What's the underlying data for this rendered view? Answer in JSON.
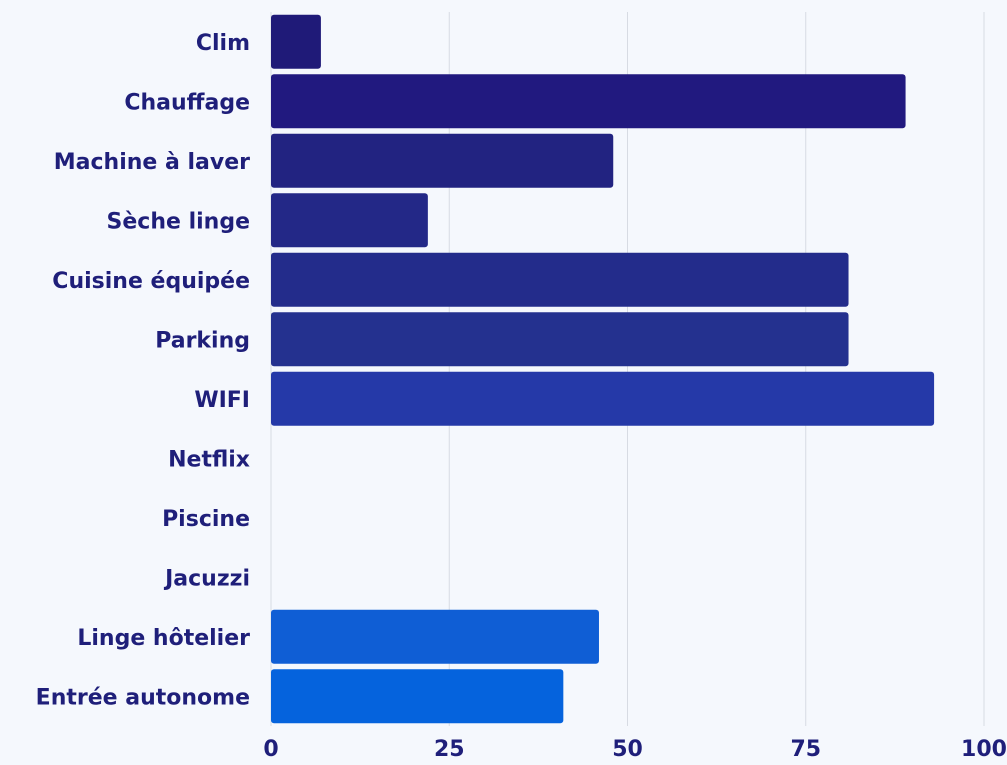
{
  "chart_data": {
    "type": "bar",
    "orientation": "horizontal",
    "categories": [
      "Clim",
      "Chauffage",
      "Machine à laver",
      "Sèche linge",
      "Cuisine équipée",
      "Parking",
      "WIFI",
      "Netflix",
      "Piscine",
      "Jacuzzi",
      "Linge hôtelier",
      "Entrée autonome"
    ],
    "values": [
      7,
      89,
      48,
      22,
      81,
      81,
      93,
      0,
      0,
      0,
      46,
      41
    ],
    "colors": [
      "#1f1a78",
      "#21197f",
      "#222381",
      "#232887",
      "#232c8b",
      "#24318f",
      "#2539a8",
      "#2a3fb0",
      "#2b48be",
      "#2d50c6",
      "#0f5ed5",
      "#0563dd"
    ],
    "xlim": [
      0,
      100
    ],
    "xticks": [
      "0",
      "25",
      "50",
      "75",
      "100"
    ],
    "grid": true,
    "title": "",
    "xlabel": "",
    "ylabel": ""
  }
}
